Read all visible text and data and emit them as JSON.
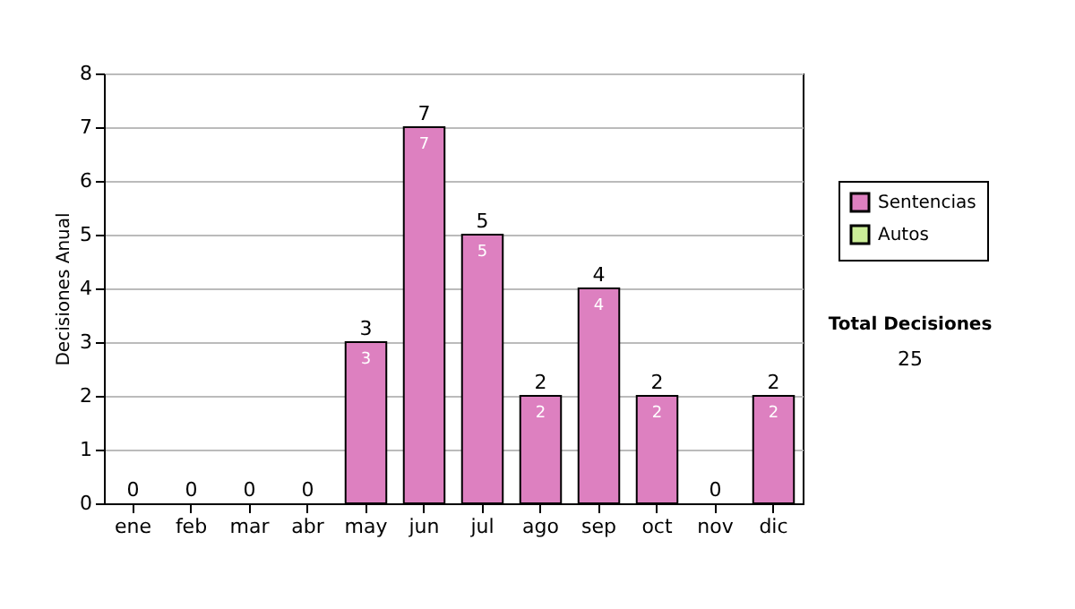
{
  "chart_data": {
    "type": "bar",
    "stacked": true,
    "ylabel": "Decisiones Anual",
    "categories": [
      "ene",
      "feb",
      "mar",
      "abr",
      "may",
      "jun",
      "jul",
      "ago",
      "sep",
      "oct",
      "nov",
      "dic"
    ],
    "series": [
      {
        "name": "Sentencias",
        "color": "#dd80c0",
        "values": [
          0,
          0,
          0,
          0,
          3,
          7,
          5,
          2,
          4,
          2,
          0,
          2
        ],
        "value_labels": [
          null,
          null,
          null,
          null,
          "3",
          "7",
          "5",
          "2",
          "4",
          "2",
          null,
          "2"
        ]
      },
      {
        "name": "Autos",
        "color": "#ccee99",
        "values": [
          0,
          0,
          0,
          0,
          0,
          0,
          0,
          0,
          0,
          0,
          0,
          0
        ]
      }
    ],
    "totals": [
      "0",
      "0",
      "0",
      "0",
      "3",
      "7",
      "5",
      "2",
      "4",
      "2",
      "0",
      "2"
    ],
    "ylim": [
      0,
      8
    ],
    "yticks": [
      0,
      1,
      2,
      3,
      4,
      5,
      6,
      7,
      8
    ],
    "grid": "y",
    "legend": "right",
    "annotations": [
      "Total Decisiones",
      "25"
    ]
  }
}
